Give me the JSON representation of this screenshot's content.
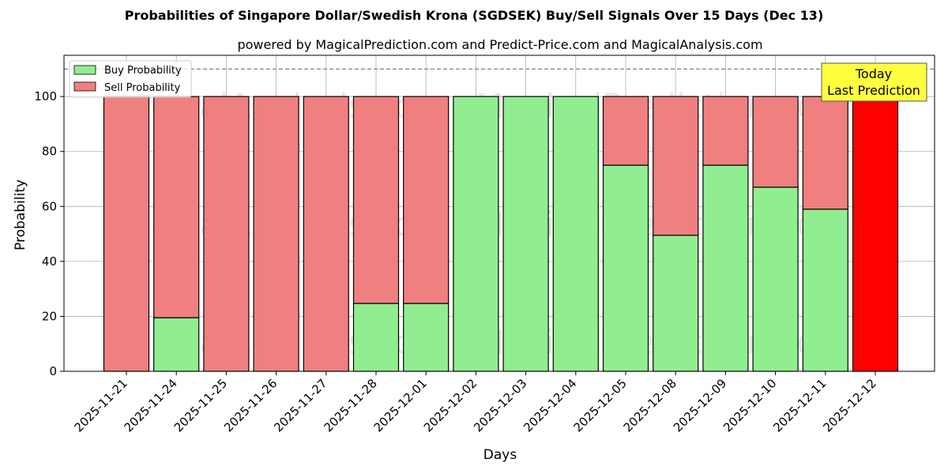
{
  "title": "Probabilities of Singapore Dollar/Swedish Krona (SGDSEK) Buy/Sell Signals Over 15 Days (Dec 13)",
  "subtitle": "powered by MagicalPrediction.com and Predict-Price.com and MagicalAnalysis.com",
  "watermarks": [
    "MagicalAnalysis.com",
    "MagicalPrediction.com"
  ],
  "today_box": {
    "line1": "Today",
    "line2": "Last Prediction"
  },
  "colors": {
    "buy": "#90ee90",
    "sell": "#f08080",
    "today": "#ff0000",
    "today_box": "#ffff40"
  },
  "chart_data": {
    "type": "bar",
    "stacked": true,
    "xlabel": "Days",
    "ylabel": "Probability",
    "ylim": [
      0,
      115
    ],
    "yticks": [
      0,
      20,
      40,
      60,
      80,
      100
    ],
    "reference_line": 110,
    "grid": true,
    "legend": "top-left",
    "categories": [
      "2025-11-21",
      "2025-11-24",
      "2025-11-25",
      "2025-11-26",
      "2025-11-27",
      "2025-11-28",
      "2025-12-01",
      "2025-12-02",
      "2025-12-03",
      "2025-12-04",
      "2025-12-05",
      "2025-12-08",
      "2025-12-09",
      "2025-12-10",
      "2025-12-11",
      "2025-12-12"
    ],
    "series": [
      {
        "name": "Buy Probability",
        "values": [
          0,
          19.5,
          0,
          0,
          0,
          24.7,
          24.7,
          100,
          100,
          100,
          75,
          49.5,
          75,
          67,
          59,
          0
        ]
      },
      {
        "name": "Sell Probability",
        "values": [
          100,
          80.5,
          100,
          100,
          100,
          75.3,
          75.3,
          0,
          0,
          0,
          25,
          50.5,
          25,
          33,
          41,
          100
        ]
      }
    ],
    "highlight_last": true
  }
}
